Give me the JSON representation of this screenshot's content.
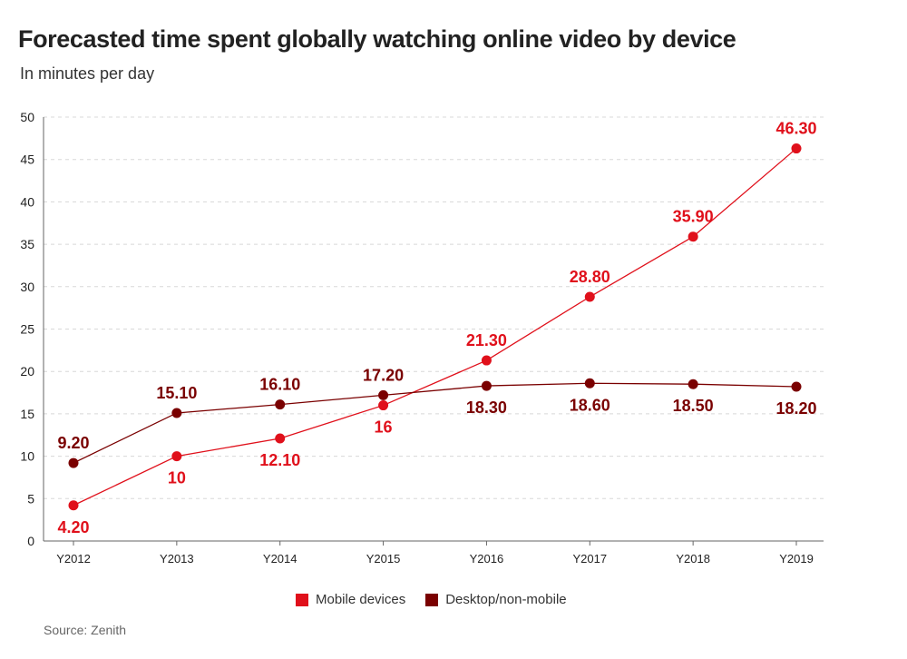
{
  "chart_data": {
    "type": "line",
    "title": "Forecasted time spent globally watching online video by  device",
    "subtitle": "In minutes per day",
    "categories": [
      "Y2012",
      "Y2013",
      "Y2014",
      "Y2015",
      "Y2016",
      "Y2017",
      "Y2018",
      "Y2019"
    ],
    "ylim": [
      0,
      50
    ],
    "yticks": [
      "0",
      "5",
      "10",
      "15",
      "20",
      "25",
      "30",
      "35",
      "40",
      "45",
      "50"
    ],
    "grid": "horizontal dashed",
    "legend_position": "bottom",
    "series": [
      {
        "name": "Mobile devices",
        "color": "#e0101b",
        "values": [
          4.2,
          10,
          12.1,
          16,
          21.3,
          28.8,
          35.9,
          46.3
        ],
        "labels": [
          "4.20",
          "10",
          "12.10",
          "16",
          "21.30",
          "28.80",
          "35.90",
          "46.30"
        ],
        "label_positions": [
          "below",
          "below",
          "below",
          "below",
          "above",
          "above",
          "above",
          "above"
        ]
      },
      {
        "name": "Desktop/non-mobile",
        "color": "#7a0000",
        "values": [
          9.2,
          15.1,
          16.1,
          17.2,
          18.3,
          18.6,
          18.5,
          18.2
        ],
        "labels": [
          "9.20",
          "15.10",
          "16.10",
          "17.20",
          "18.30",
          "18.60",
          "18.50",
          "18.20"
        ],
        "label_positions": [
          "above",
          "above",
          "above",
          "above",
          "below",
          "below",
          "below",
          "below"
        ]
      }
    ],
    "source": "Source: Zenith"
  }
}
